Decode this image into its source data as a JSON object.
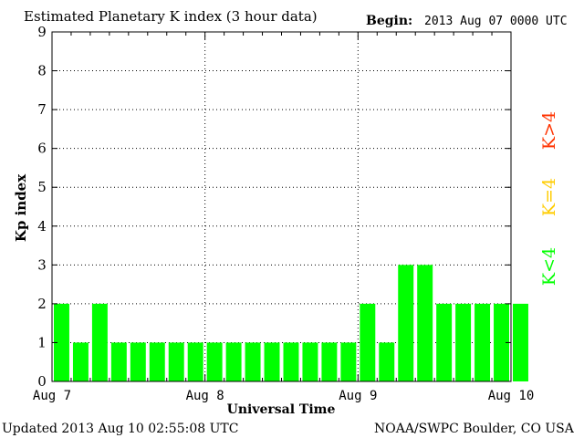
{
  "header": {
    "title": "Estimated Planetary K index (3 hour data)",
    "begin_label": "Begin:",
    "begin_value": "2013 Aug 07 0000 UTC"
  },
  "footer": {
    "updated": "Updated 2013 Aug 10 02:55:08 UTC",
    "source": "NOAA/SWPC Boulder, CO USA"
  },
  "legend": {
    "items": [
      {
        "label": "K<4",
        "color": "#00ff00"
      },
      {
        "label": "K=4",
        "color": "#ffcc00"
      },
      {
        "label": "K>4",
        "color": "#ff3300"
      }
    ]
  },
  "chart_data": {
    "type": "bar",
    "title": "Estimated Planetary K index (3 hour data)",
    "xlabel": "Universal Time",
    "ylabel": "Kp index",
    "ylim": [
      0,
      9
    ],
    "yticks": [
      0,
      1,
      2,
      3,
      4,
      5,
      6,
      7,
      8,
      9
    ],
    "xticks": [
      "Aug 7",
      "Aug 8",
      "Aug 9",
      "Aug 10"
    ],
    "interval_hours": 3,
    "grid": true,
    "bar_color": "#00ff00",
    "values": [
      2,
      1,
      2,
      1,
      1,
      1,
      1,
      1,
      1,
      1,
      1,
      1,
      1,
      1,
      1,
      1,
      2,
      1,
      3,
      3,
      2,
      2,
      2,
      2,
      2
    ]
  }
}
